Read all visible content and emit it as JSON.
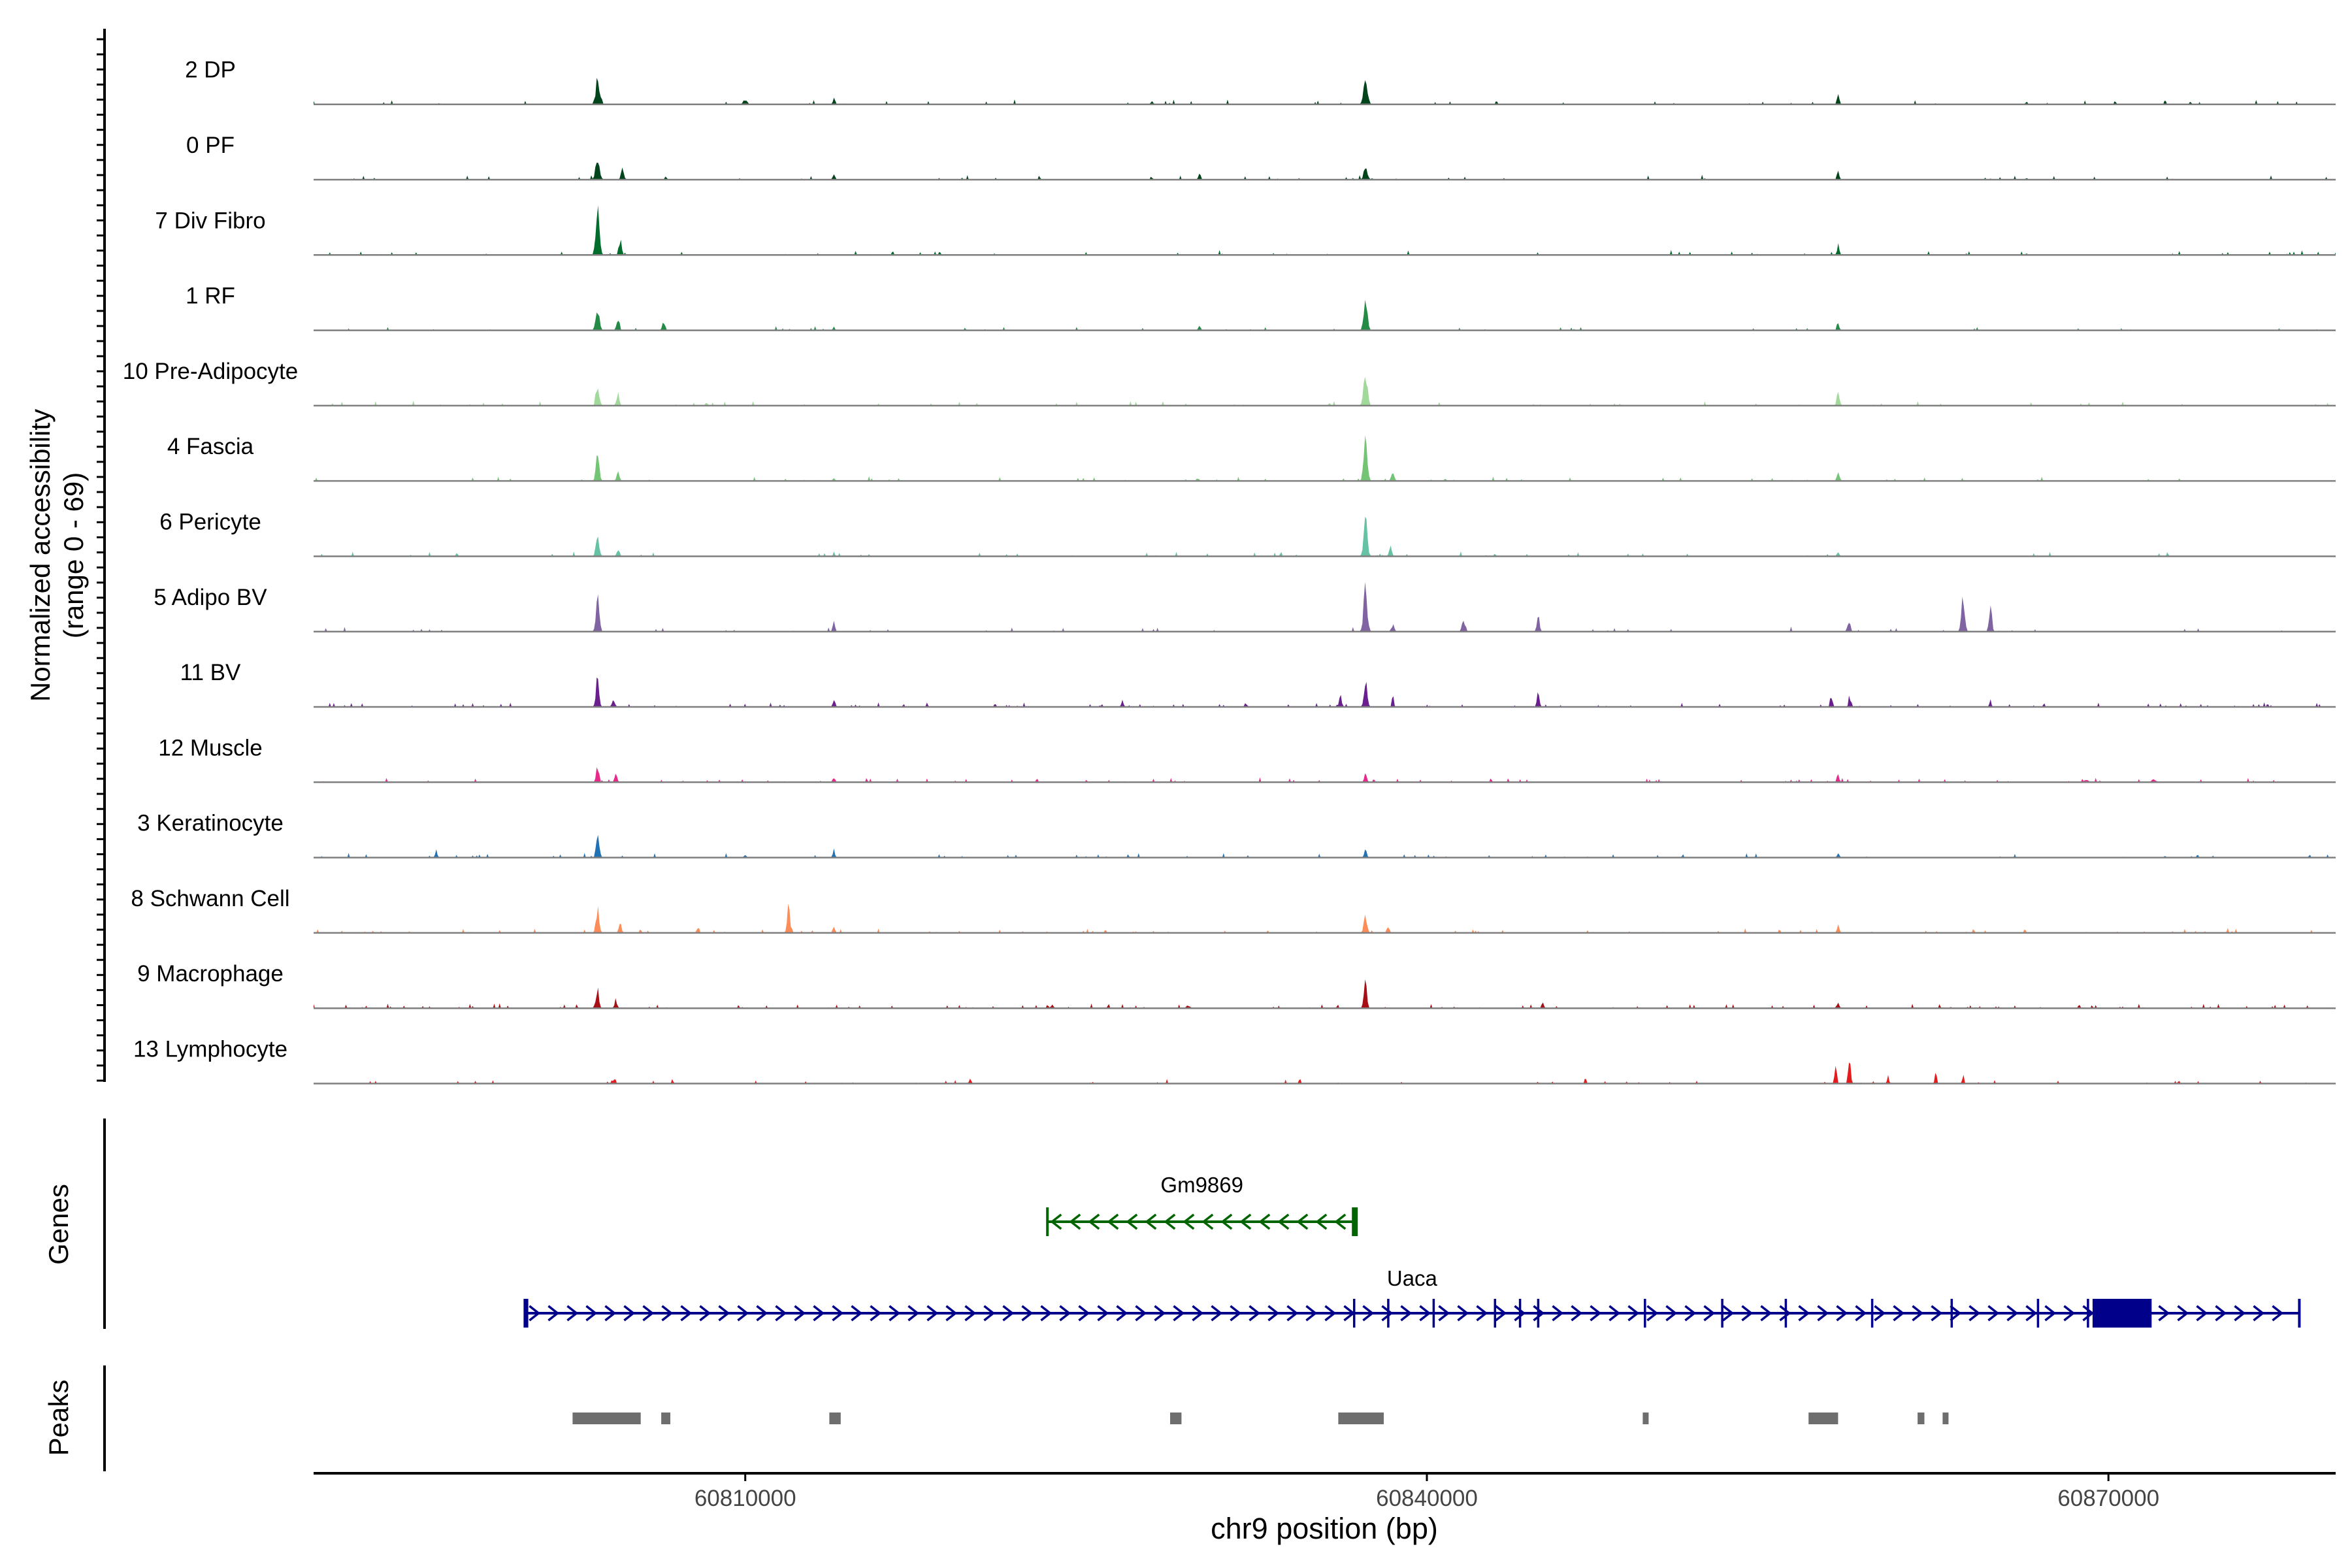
{
  "chart_data": {
    "type": "coverage",
    "ylabel_line1": "Normalized accessibility",
    "ylabel_line2": "(range 0 - 69)",
    "xlabel": "chr9 position (bp)",
    "xlim": [
      60791000,
      60880000
    ],
    "x_ticks": [
      {
        "value": 60810000,
        "label": "60810000"
      },
      {
        "value": 60840000,
        "label": "60840000"
      },
      {
        "value": 60870000,
        "label": "60870000"
      }
    ],
    "tracks": [
      {
        "name": "2 DP",
        "color": "#00441b",
        "peaks": [
          [
            60803500,
            30,
            90
          ],
          [
            60810000,
            7,
            80
          ],
          [
            60813900,
            9,
            50
          ],
          [
            60837300,
            31,
            90
          ],
          [
            60858100,
            13,
            50
          ],
          [
            60870300,
            5,
            40
          ],
          [
            60866400,
            4,
            40
          ],
          [
            60873600,
            4,
            40
          ],
          [
            60827900,
            4,
            60
          ]
        ],
        "noise": 0.03
      },
      {
        "name": "0 PF",
        "color": "#00441b",
        "peaks": [
          [
            60803500,
            28,
            90
          ],
          [
            60804600,
            18,
            60
          ],
          [
            60806500,
            6,
            40
          ],
          [
            60813900,
            8,
            50
          ],
          [
            60837300,
            17,
            80
          ],
          [
            60830000,
            9,
            50
          ],
          [
            60858100,
            12,
            50
          ],
          [
            60827900,
            3,
            40
          ],
          [
            60866400,
            3,
            40
          ]
        ],
        "noise": 0.04
      },
      {
        "name": "7 Div Fibro",
        "color": "#006d2c",
        "peaks": [
          [
            60803500,
            60,
            80
          ],
          [
            60804500,
            20,
            60
          ],
          [
            60858100,
            14,
            50
          ],
          [
            60866400,
            3,
            40
          ]
        ],
        "noise": 0.05
      },
      {
        "name": "1 RF",
        "color": "#238b45",
        "peaks": [
          [
            60803500,
            28,
            80
          ],
          [
            60804400,
            18,
            60
          ],
          [
            60806400,
            12,
            60
          ],
          [
            60813900,
            6,
            40
          ],
          [
            60830000,
            8,
            50
          ],
          [
            60837300,
            45,
            80
          ],
          [
            60858100,
            12,
            50
          ]
        ],
        "noise": 0.04
      },
      {
        "name": "10 Pre-Adipocyte",
        "color": "#a1d99b",
        "peaks": [
          [
            60803500,
            28,
            70
          ],
          [
            60804400,
            18,
            60
          ],
          [
            60837300,
            50,
            80
          ],
          [
            60858100,
            18,
            60
          ],
          [
            60808300,
            5,
            50
          ]
        ],
        "noise": 0.05
      },
      {
        "name": "4 Fascia",
        "color": "#74c476",
        "peaks": [
          [
            60803500,
            36,
            70
          ],
          [
            60804400,
            16,
            60
          ],
          [
            60837300,
            55,
            80
          ],
          [
            60838500,
            14,
            60
          ],
          [
            60858100,
            14,
            60
          ],
          [
            60813900,
            5,
            40
          ],
          [
            60840800,
            4,
            40
          ]
        ],
        "noise": 0.04
      },
      {
        "name": "6 Pericyte",
        "color": "#66c2a5",
        "peaks": [
          [
            60803500,
            30,
            70
          ],
          [
            60804400,
            10,
            60
          ],
          [
            60837300,
            50,
            80
          ],
          [
            60838400,
            12,
            60
          ],
          [
            60813900,
            6,
            40
          ],
          [
            60843000,
            4,
            40
          ],
          [
            60858100,
            6,
            50
          ],
          [
            60797300,
            5,
            40
          ]
        ],
        "noise": 0.05
      },
      {
        "name": "5 Adipo BV",
        "color": "#8064a2",
        "peaks": [
          [
            60803500,
            50,
            70
          ],
          [
            60813900,
            13,
            50
          ],
          [
            60837300,
            60,
            80
          ],
          [
            60841600,
            15,
            60
          ],
          [
            60844900,
            22,
            60
          ],
          [
            60858600,
            12,
            50
          ],
          [
            60863600,
            54,
            70
          ],
          [
            60864800,
            36,
            60
          ],
          [
            60838500,
            10,
            60
          ]
        ],
        "noise": 0.04
      },
      {
        "name": "11 BV",
        "color": "#6a1f8e",
        "peaks": [
          [
            60803500,
            43,
            60
          ],
          [
            60804200,
            9,
            70
          ],
          [
            60813900,
            12,
            50
          ],
          [
            60826600,
            9,
            50
          ],
          [
            60837300,
            40,
            70
          ],
          [
            60836200,
            14,
            60
          ],
          [
            60838500,
            18,
            40
          ],
          [
            60844900,
            22,
            50
          ],
          [
            60857800,
            17,
            50
          ],
          [
            60858600,
            20,
            40
          ],
          [
            60864800,
            10,
            40
          ],
          [
            60818000,
            5,
            40
          ],
          [
            60821000,
            5,
            40
          ],
          [
            60832000,
            5,
            40
          ]
        ],
        "noise": 0.07
      },
      {
        "name": "12 Muscle",
        "color": "#e7298a",
        "peaks": [
          [
            60803500,
            23,
            60
          ],
          [
            60804300,
            10,
            60
          ],
          [
            60813900,
            7,
            50
          ],
          [
            60837300,
            12,
            60
          ],
          [
            60858100,
            12,
            50
          ],
          [
            60869000,
            4,
            100
          ],
          [
            60872000,
            4,
            100
          ]
        ],
        "noise": 0.07
      },
      {
        "name": "3 Keratinocyte",
        "color": "#2171b5",
        "peaks": [
          [
            60796400,
            10,
            50
          ],
          [
            60803500,
            40,
            60
          ],
          [
            60813900,
            11,
            50
          ],
          [
            60837300,
            11,
            60
          ],
          [
            60858100,
            6,
            50
          ],
          [
            60872500,
            3,
            40
          ],
          [
            60810000,
            3,
            60
          ]
        ],
        "noise": 0.05
      },
      {
        "name": "8 Schwann Cell",
        "color": "#fc8d59",
        "peaks": [
          [
            60803500,
            36,
            70
          ],
          [
            60804500,
            13,
            60
          ],
          [
            60811900,
            36,
            60
          ],
          [
            60813900,
            9,
            50
          ],
          [
            60837300,
            25,
            70
          ],
          [
            60838300,
            10,
            60
          ],
          [
            60858100,
            12,
            50
          ],
          [
            60807900,
            6,
            50
          ]
        ],
        "noise": 0.06
      },
      {
        "name": "9 Macrophage",
        "color": "#a50f15",
        "peaks": [
          [
            60803500,
            32,
            60
          ],
          [
            60804300,
            10,
            60
          ],
          [
            60837300,
            37,
            60
          ],
          [
            60845100,
            7,
            50
          ],
          [
            60858100,
            8,
            50
          ],
          [
            60823500,
            5,
            60
          ],
          [
            60829500,
            4,
            80
          ]
        ],
        "noise": 0.09
      },
      {
        "name": "13 Lymphocyte",
        "color": "#e41a1c",
        "peaks": [
          [
            60858600,
            41,
            50
          ],
          [
            60858000,
            22,
            50
          ],
          [
            60860300,
            11,
            40
          ],
          [
            60862400,
            16,
            40
          ],
          [
            60863600,
            12,
            40
          ],
          [
            60834400,
            8,
            40
          ],
          [
            60819900,
            8,
            40
          ],
          [
            60806800,
            6,
            40
          ],
          [
            60804200,
            6,
            50
          ],
          [
            60873100,
            4,
            40
          ]
        ],
        "noise": 0.04
      }
    ],
    "genes_label": "Genes",
    "genes": [
      {
        "name": "Gm9869",
        "start": 60823300,
        "end": 60836900,
        "strand": "-",
        "color": "#006400",
        "exons": [
          [
            60836700,
            60836900
          ]
        ]
      },
      {
        "name": "Uaca",
        "start": 60800300,
        "end": 60878400,
        "strand": "+",
        "color": "#00008b",
        "exons": [
          [
            60800300,
            60800450
          ],
          [
            60869300,
            60871900
          ]
        ],
        "ticks": [
          60836800,
          60838300,
          60840300,
          60843000,
          60844100,
          60844900,
          60849600,
          60853000,
          60855800,
          60859600,
          60863100,
          60866900,
          60869100
        ]
      }
    ],
    "peaks_label": "Peaks",
    "peak_regions": [
      [
        60802400,
        60805400
      ],
      [
        60806300,
        60806700
      ],
      [
        60813700,
        60814200
      ],
      [
        60828700,
        60829200
      ],
      [
        60836100,
        60838100
      ],
      [
        60849500,
        60849700
      ],
      [
        60856800,
        60858100
      ],
      [
        60861600,
        60861900
      ],
      [
        60862700,
        60862900
      ]
    ]
  }
}
